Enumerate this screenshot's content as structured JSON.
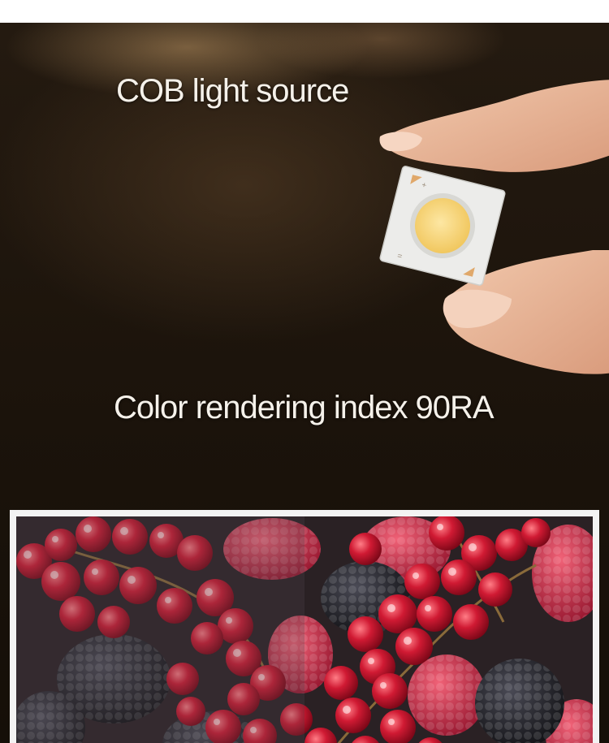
{
  "texts": {
    "cob_light_source": "COB light source",
    "color_rendering": "Color rendering index 90RA"
  },
  "colors": {
    "background_dark": "#1b130b",
    "headline_text": "#f5f1ea",
    "led_phosphor": "#f5cf6a",
    "berry_red": "#c8142c",
    "blackberry": "#141418",
    "frame": "#f3f3f3"
  },
  "icons": {
    "hand": "hand-holding-chip-icon",
    "chip": "cob-led-chip-icon"
  }
}
